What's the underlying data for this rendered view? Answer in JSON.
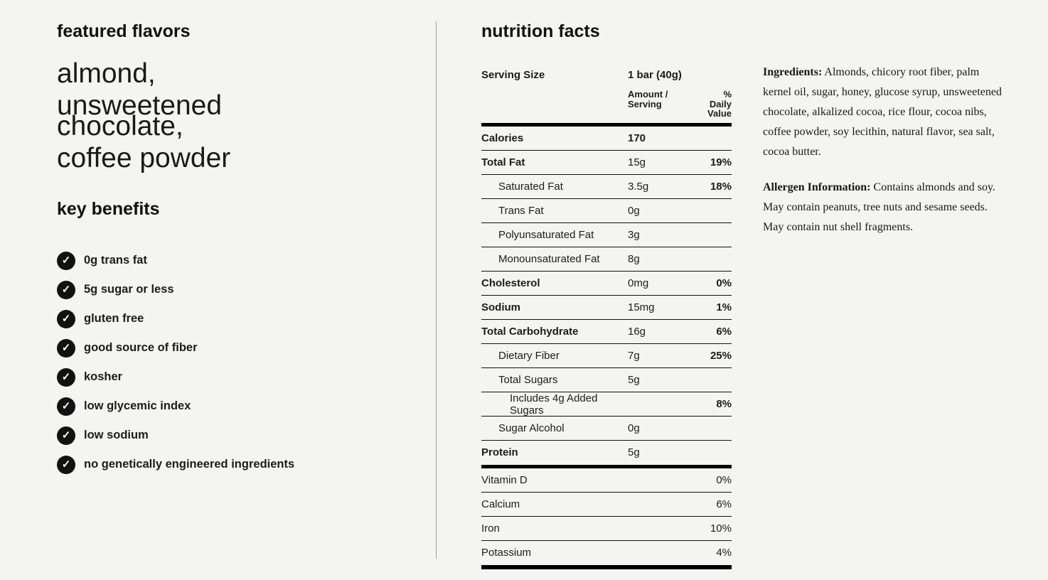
{
  "theme": {
    "background": "#f4f4f2",
    "text": "#1c1c1c",
    "table_line": "#000000",
    "divider": "#9e9e9e",
    "check_bg": "#111111",
    "check_color": "#ffffff"
  },
  "featured": {
    "title": "featured flavors",
    "flavors": [
      "almond,",
      "unsweetened chocolate,",
      "coffee powder"
    ]
  },
  "benefits": {
    "title": "key benefits",
    "check_icon": "✓",
    "items": [
      "0g trans fat",
      "5g sugar or less",
      "gluten free",
      "good source of fiber",
      "kosher",
      "low glycemic index",
      "low sodium",
      "no genetically engineered ingredients"
    ]
  },
  "nutrition": {
    "title": "nutrition facts",
    "serving": {
      "label": "Serving Size",
      "value": "1 bar (40g)"
    },
    "headers": {
      "amount_line1": "Amount /",
      "amount_line2": "Serving",
      "dv_line1": "% Daily",
      "dv_line2": "Value"
    },
    "rows": [
      {
        "label": "Calories",
        "amount": "170",
        "dv": "",
        "label_bold": true,
        "amount_bold": true,
        "indent": 0
      },
      {
        "label": "Total Fat",
        "amount": "15g",
        "dv": "19%",
        "label_bold": true,
        "indent": 0
      },
      {
        "label": "Saturated Fat",
        "amount": "3.5g",
        "dv": "18%",
        "indent": 1
      },
      {
        "label": "Trans Fat",
        "amount": "0g",
        "dv": "",
        "indent": 1
      },
      {
        "label": "Polyunsaturated Fat",
        "amount": "3g",
        "dv": "",
        "indent": 1
      },
      {
        "label": "Monounsaturated Fat",
        "amount": "8g",
        "dv": "",
        "indent": 1
      },
      {
        "label": "Cholesterol",
        "amount": "0mg",
        "dv": "0%",
        "label_bold": true,
        "indent": 0
      },
      {
        "label": "Sodium",
        "amount": "15mg",
        "dv": "1%",
        "label_bold": true,
        "indent": 0
      },
      {
        "label": "Total Carbohydrate",
        "amount": "16g",
        "dv": "6%",
        "label_bold": true,
        "indent": 0
      },
      {
        "label": "Dietary Fiber",
        "amount": "7g",
        "dv": "25%",
        "indent": 1
      },
      {
        "label": "Total Sugars",
        "amount": "5g",
        "dv": "",
        "indent": 1
      },
      {
        "label": "Includes 4g Added Sugars",
        "amount": "",
        "dv": "8%",
        "indent": 2
      },
      {
        "label": "Sugar Alcohol",
        "amount": "0g",
        "dv": "",
        "indent": 1
      },
      {
        "label": "Protein",
        "amount": "5g",
        "dv": "",
        "label_bold": true,
        "indent": 0
      }
    ],
    "minerals": [
      {
        "label": "Vitamin D",
        "dv": "0%"
      },
      {
        "label": "Calcium",
        "dv": "6%"
      },
      {
        "label": "Iron",
        "dv": "10%"
      },
      {
        "label": "Potassium",
        "dv": "4%"
      }
    ]
  },
  "details": {
    "ingredients_label": "Ingredients:",
    "ingredients_text": " Almonds, chicory root fiber, palm kernel oil, sugar, honey, glucose syrup, unsweetened chocolate, alkalized cocoa, rice flour, cocoa nibs, coffee powder, soy lecithin, natural flavor, sea salt, cocoa butter.",
    "allergen_label": "Allergen Information:",
    "allergen_text": " Contains almonds and soy. May contain peanuts, tree nuts and sesame seeds. May contain nut shell fragments."
  }
}
